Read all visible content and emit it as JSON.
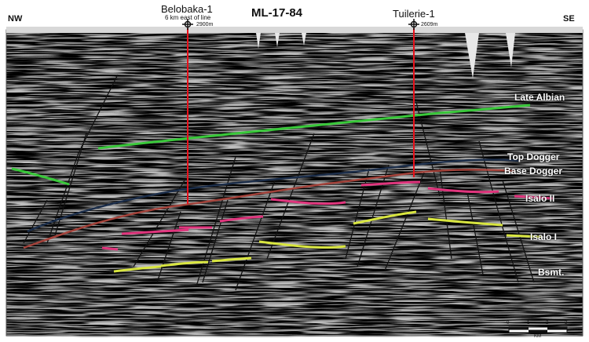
{
  "title": "ML-17-84",
  "direction": {
    "left": "NW",
    "right": "SE"
  },
  "wells": [
    {
      "name": "Belobaka-1",
      "note": "6 km east of line",
      "depth": "2900m"
    },
    {
      "name": "Tuilerie-1",
      "note": "",
      "depth": "2609m"
    }
  ],
  "horizons": [
    {
      "name": "Late Albian",
      "color": "#39c83a"
    },
    {
      "name": "Top Dogger",
      "color": "#1c2e4a"
    },
    {
      "name": "Base Dogger",
      "color": "#a3423a"
    },
    {
      "name": "Isalo II",
      "color": "#e0357d"
    },
    {
      "name": "Isalo I",
      "color": "#d9e640"
    },
    {
      "name": "Bsmt.",
      "color": "#ffffff"
    }
  ],
  "scale": {
    "ticks": [
      "0",
      "1",
      "2",
      "3"
    ],
    "unit": "KM"
  },
  "colors": {
    "well_line": "#e8101a",
    "fault": "#111111",
    "label_text": "#ffffff"
  }
}
